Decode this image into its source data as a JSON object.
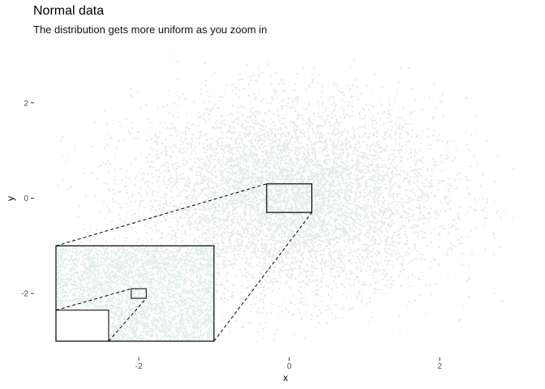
{
  "chart_data": {
    "type": "scatter",
    "title": "Normal data",
    "subtitle": "The distribution gets more uniform as you zoom in",
    "xlabel": "x",
    "ylabel": "y",
    "xlim": [
      -3.1,
      3.0
    ],
    "ylim": [
      -3.0,
      3.0
    ],
    "x_ticks": [
      {
        "value": -2,
        "label": "-2"
      },
      {
        "value": 0,
        "label": "0"
      },
      {
        "value": 2,
        "label": "2"
      }
    ],
    "y_ticks": [
      {
        "value": 2,
        "label": "2"
      },
      {
        "value": 0,
        "label": "0"
      },
      {
        "value": -2,
        "label": "-2"
      }
    ],
    "point_color": "#2e8b57",
    "point_alpha": 0.15,
    "distribution": "standard normal, n ≈ 100000, clipped to plot range",
    "zoom_region": {
      "x": [
        -0.3,
        0.3
      ],
      "y": [
        -0.3,
        0.3
      ]
    },
    "inset": {
      "x": [
        -3.1,
        -1.0
      ],
      "y": [
        -3.0,
        -1.0
      ],
      "nested_zoom_region": {
        "x": [
          -2.1,
          -1.9
        ],
        "y": [
          -2.1,
          -1.9
        ]
      },
      "nested_inset": {
        "x": [
          -3.1,
          -2.4
        ],
        "y": [
          -3.0,
          -2.35
        ]
      }
    },
    "grid": false,
    "legend": "none"
  }
}
